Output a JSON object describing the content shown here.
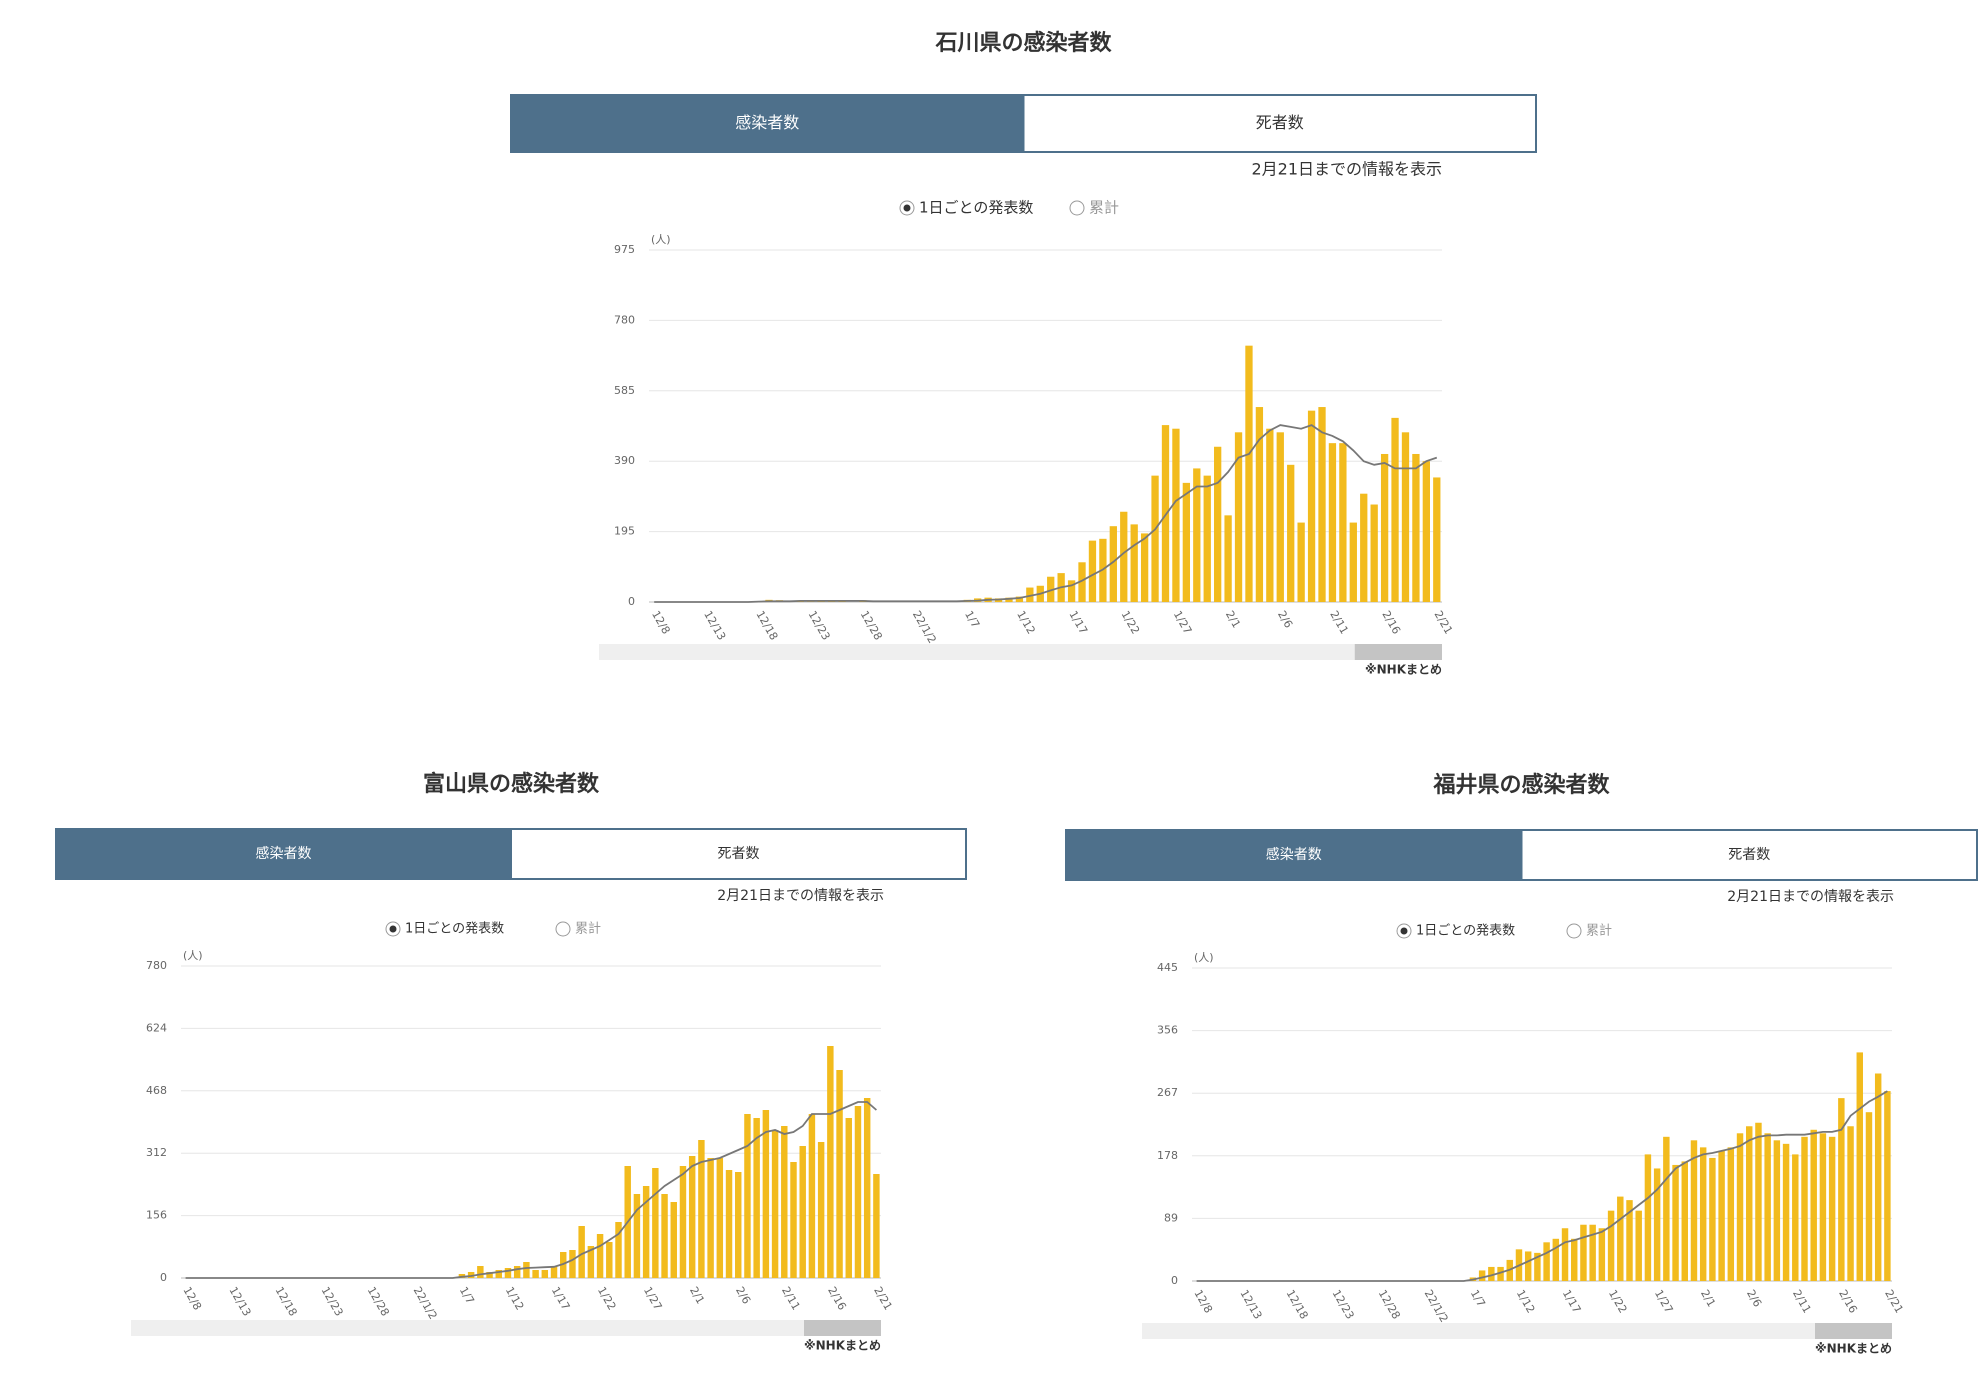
{
  "chart_data": [
    {
      "type": "bar",
      "title": "石川県の感染者数",
      "tabs": [
        "感染者数",
        "死者数"
      ],
      "date_note": "2月21日までの情報を表示",
      "options": [
        "1日ごとの発表数",
        "累計"
      ],
      "y_unit": "(人)",
      "source": "※NHKまとめ",
      "categories": [
        "12/8",
        null,
        null,
        null,
        null,
        "12/13",
        null,
        null,
        null,
        null,
        "12/18",
        null,
        null,
        null,
        null,
        "12/23",
        null,
        null,
        null,
        null,
        "12/28",
        null,
        null,
        null,
        null,
        "22/1/2",
        null,
        null,
        null,
        null,
        "1/7",
        null,
        null,
        null,
        null,
        "1/12",
        null,
        null,
        null,
        null,
        "1/17",
        null,
        null,
        null,
        null,
        "1/22",
        null,
        null,
        null,
        null,
        "1/27",
        null,
        null,
        null,
        null,
        "2/1",
        null,
        null,
        null,
        null,
        "2/6",
        null,
        null,
        null,
        null,
        "2/11",
        null,
        null,
        null,
        null,
        "2/16",
        null,
        null,
        null,
        null,
        "2/21"
      ],
      "ylim": [
        0,
        975
      ],
      "yticks": [
        0,
        195,
        390,
        585,
        780,
        975
      ],
      "grid": true,
      "series": [
        {
          "type": "bar",
          "color": "#f2bb1d",
          "values": [
            0,
            0,
            0,
            1,
            0,
            0,
            0,
            0,
            0,
            1,
            2,
            6,
            5,
            1,
            2,
            1,
            3,
            4,
            2,
            0,
            5,
            1,
            2,
            1,
            2,
            1,
            2,
            1,
            3,
            4,
            6,
            10,
            12,
            10,
            12,
            15,
            40,
            45,
            70,
            80,
            60,
            110,
            170,
            175,
            210,
            250,
            215,
            190,
            350,
            490,
            480,
            330,
            370,
            350,
            430,
            240,
            470,
            710,
            540,
            480,
            470,
            380,
            220,
            530,
            540,
            440,
            440,
            220,
            300,
            270,
            410,
            510,
            470,
            410,
            390,
            345
          ]
        },
        {
          "type": "line",
          "color": "#777777",
          "values": [
            0,
            0,
            0,
            0,
            0,
            0,
            0,
            0,
            0,
            0,
            1,
            2,
            2,
            2,
            3,
            3,
            3,
            3,
            3,
            3,
            3,
            2,
            2,
            2,
            2,
            2,
            2,
            2,
            2,
            2,
            3,
            4,
            6,
            7,
            9,
            11,
            17,
            23,
            32,
            41,
            46,
            59,
            75,
            90,
            111,
            136,
            157,
            176,
            201,
            241,
            280,
            300,
            320,
            320,
            330,
            360,
            400,
            410,
            450,
            475,
            490,
            485,
            480,
            490,
            470,
            460,
            445,
            420,
            390,
            380,
            385,
            370,
            370,
            370,
            390,
            400
          ]
        }
      ]
    },
    {
      "type": "bar",
      "title": "富山県の感染者数",
      "tabs": [
        "感染者数",
        "死者数"
      ],
      "date_note": "2月21日までの情報を表示",
      "options": [
        "1日ごとの発表数",
        "累計"
      ],
      "y_unit": "(人)",
      "source": "※NHKまとめ",
      "categories": [
        "12/8",
        null,
        null,
        null,
        null,
        "12/13",
        null,
        null,
        null,
        null,
        "12/18",
        null,
        null,
        null,
        null,
        "12/23",
        null,
        null,
        null,
        null,
        "12/28",
        null,
        null,
        null,
        null,
        "22/1/2",
        null,
        null,
        null,
        null,
        "1/7",
        null,
        null,
        null,
        null,
        "1/12",
        null,
        null,
        null,
        null,
        "1/17",
        null,
        null,
        null,
        null,
        "1/22",
        null,
        null,
        null,
        null,
        "1/27",
        null,
        null,
        null,
        null,
        "2/1",
        null,
        null,
        null,
        null,
        "2/6",
        null,
        null,
        null,
        null,
        "2/11",
        null,
        null,
        null,
        null,
        "2/16",
        null,
        null,
        null,
        null,
        "2/21"
      ],
      "ylim": [
        0,
        780
      ],
      "yticks": [
        0,
        156,
        312,
        468,
        624,
        780
      ],
      "grid": true,
      "series": [
        {
          "type": "bar",
          "color": "#f2bb1d",
          "values": [
            0,
            0,
            0,
            0,
            0,
            0,
            0,
            0,
            0,
            0,
            0,
            0,
            0,
            0,
            0,
            0,
            0,
            0,
            0,
            0,
            0,
            0,
            0,
            0,
            0,
            0,
            0,
            0,
            0,
            0,
            10,
            15,
            30,
            15,
            20,
            25,
            30,
            40,
            20,
            20,
            30,
            65,
            70,
            130,
            80,
            110,
            90,
            140,
            280,
            210,
            230,
            275,
            210,
            190,
            280,
            305,
            345,
            300,
            300,
            270,
            265,
            410,
            400,
            420,
            370,
            380,
            290,
            330,
            410,
            340,
            580,
            520,
            400,
            430,
            450,
            260
          ]
        },
        {
          "type": "line",
          "color": "#777777",
          "values": [
            0,
            0,
            0,
            0,
            0,
            0,
            0,
            0,
            0,
            0,
            0,
            0,
            0,
            0,
            0,
            0,
            0,
            0,
            0,
            0,
            0,
            0,
            0,
            0,
            0,
            0,
            0,
            0,
            0,
            0,
            3,
            5,
            9,
            12,
            15,
            18,
            22,
            25,
            26,
            27,
            28,
            35,
            45,
            60,
            70,
            80,
            95,
            110,
            140,
            170,
            190,
            210,
            230,
            245,
            260,
            280,
            290,
            295,
            300,
            310,
            320,
            330,
            350,
            365,
            370,
            360,
            365,
            380,
            410,
            410,
            410,
            420,
            430,
            440,
            440,
            420
          ]
        }
      ]
    },
    {
      "type": "bar",
      "title": "福井県の感染者数",
      "tabs": [
        "感染者数",
        "死者数"
      ],
      "date_note": "2月21日までの情報を表示",
      "options": [
        "1日ごとの発表数",
        "累計"
      ],
      "y_unit": "(人)",
      "source": "※NHKまとめ",
      "categories": [
        "12/8",
        null,
        null,
        null,
        null,
        "12/13",
        null,
        null,
        null,
        null,
        "12/18",
        null,
        null,
        null,
        null,
        "12/23",
        null,
        null,
        null,
        null,
        "12/28",
        null,
        null,
        null,
        null,
        "22/1/2",
        null,
        null,
        null,
        null,
        "1/7",
        null,
        null,
        null,
        null,
        "1/12",
        null,
        null,
        null,
        null,
        "1/17",
        null,
        null,
        null,
        null,
        "1/22",
        null,
        null,
        null,
        null,
        "1/27",
        null,
        null,
        null,
        null,
        "2/1",
        null,
        null,
        null,
        null,
        "2/6",
        null,
        null,
        null,
        null,
        "2/11",
        null,
        null,
        null,
        null,
        "2/16",
        null,
        null,
        null,
        null,
        "2/21"
      ],
      "ylim": [
        0,
        445
      ],
      "yticks": [
        0,
        89,
        178,
        267,
        356,
        445
      ],
      "grid": true,
      "series": [
        {
          "type": "bar",
          "color": "#f2bb1d",
          "values": [
            0,
            0,
            0,
            0,
            0,
            0,
            0,
            0,
            0,
            0,
            0,
            0,
            0,
            0,
            0,
            0,
            0,
            0,
            0,
            0,
            0,
            0,
            0,
            0,
            0,
            0,
            0,
            0,
            0,
            0,
            5,
            15,
            20,
            20,
            30,
            45,
            42,
            40,
            55,
            60,
            75,
            60,
            80,
            80,
            75,
            100,
            120,
            115,
            100,
            180,
            160,
            205,
            165,
            170,
            200,
            190,
            175,
            185,
            190,
            210,
            220,
            225,
            210,
            200,
            195,
            180,
            205,
            215,
            210,
            205,
            260,
            220,
            325,
            240,
            295,
            270
          ]
        },
        {
          "type": "line",
          "color": "#777777",
          "values": [
            0,
            0,
            0,
            0,
            0,
            0,
            0,
            0,
            0,
            0,
            0,
            0,
            0,
            0,
            0,
            0,
            0,
            0,
            0,
            0,
            0,
            0,
            0,
            0,
            0,
            0,
            0,
            0,
            0,
            0,
            2,
            5,
            8,
            12,
            16,
            22,
            28,
            34,
            40,
            47,
            55,
            58,
            62,
            66,
            70,
            78,
            88,
            98,
            108,
            118,
            130,
            145,
            160,
            168,
            175,
            180,
            182,
            185,
            188,
            192,
            200,
            205,
            207,
            207,
            208,
            208,
            208,
            210,
            212,
            212,
            215,
            235,
            245,
            255,
            262,
            270
          ]
        }
      ]
    }
  ]
}
